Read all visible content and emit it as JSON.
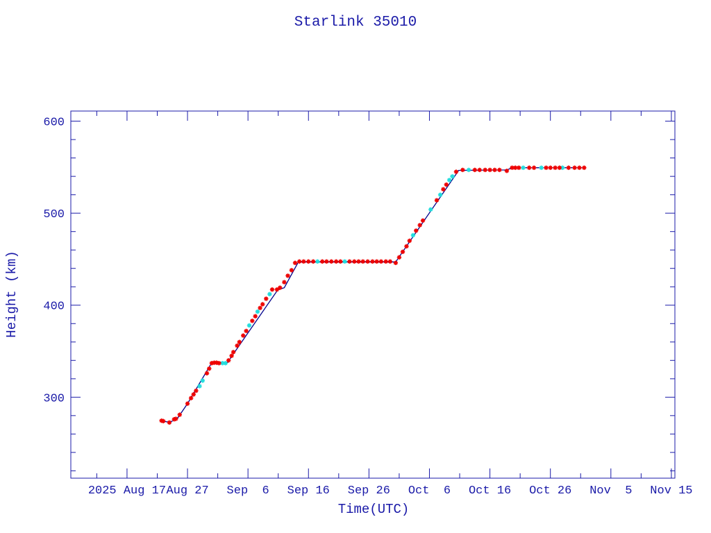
{
  "chart_data": {
    "type": "line",
    "title": "Starlink 35010",
    "xlabel": "Time(UTC)",
    "ylabel": "Height (km)",
    "xlim": [
      "2025-08-07T17:00",
      "2025-11-15T14:00"
    ],
    "ylim": [
      212,
      611
    ],
    "x_tick_dates": [
      "2025-08-17",
      "2025-08-27",
      "2025-09-06",
      "2025-09-16",
      "2025-09-26",
      "2025-10-06",
      "2025-10-16",
      "2025-10-26",
      "2025-11-05",
      "2025-11-15"
    ],
    "x_tick_labels": [
      "2025 Aug 17",
      "Aug 27",
      "Sep  6",
      "Sep 16",
      "Sep 26",
      "Oct  6",
      "Oct 16",
      "Oct 26",
      "Nov  5",
      "Nov 15"
    ],
    "y_ticks": [
      300,
      400,
      500,
      600
    ],
    "y_tick_labels": [
      "300",
      "400",
      "500",
      "600"
    ],
    "grid": false,
    "colors": {
      "axis": "#1a1aa8",
      "line": "#00008b",
      "marker_primary": "#ee0000",
      "marker_secondary": "#22dddd"
    },
    "series": [
      {
        "style": "line",
        "color": "#00008b",
        "points": [
          [
            "2025-08-22T17:00",
            274.7
          ],
          [
            "2025-08-24T00:00",
            272.5
          ],
          [
            "2025-08-25T08:00",
            277
          ],
          [
            "2025-08-27T00:00",
            293
          ],
          [
            "2025-08-31T00:00",
            337.4
          ],
          [
            "2025-09-02T14:00",
            337.5
          ],
          [
            "2025-09-10T22:00",
            416.6
          ],
          [
            "2025-09-12T00:00",
            419
          ],
          [
            "2025-09-14T08:00",
            447
          ],
          [
            "2025-09-30T10:00",
            447
          ],
          [
            "2025-10-10T20:00",
            546.5
          ],
          [
            "2025-10-18T20:00",
            547
          ],
          [
            "2025-10-19T16:00",
            549.4
          ],
          [
            "2025-10-31T14:00",
            549.4
          ]
        ]
      },
      {
        "style": "marker",
        "color": "#22dddd",
        "points": [
          [
            "2025-08-29T00:00",
            312
          ],
          [
            "2025-08-29T12:00",
            318
          ],
          [
            "2025-09-01T19:00",
            337
          ],
          [
            "2025-09-02T07:00",
            337
          ],
          [
            "2025-09-06T05:00",
            378
          ],
          [
            "2025-09-07T14:00",
            393
          ],
          [
            "2025-09-09T14:00",
            412
          ],
          [
            "2025-09-17T12:00",
            447.5
          ],
          [
            "2025-09-22T00:00",
            447.5
          ],
          [
            "2025-10-03T07:00",
            476
          ],
          [
            "2025-10-06T05:00",
            504
          ],
          [
            "2025-10-07T19:00",
            520
          ],
          [
            "2025-10-09T07:00",
            536
          ],
          [
            "2025-10-09T19:00",
            540
          ],
          [
            "2025-10-12T12:00",
            547
          ],
          [
            "2025-10-21T12:00",
            549.4
          ],
          [
            "2025-10-24T12:00",
            549.4
          ],
          [
            "2025-10-28T00:00",
            549.4
          ]
        ]
      },
      {
        "style": "marker",
        "color": "#ee0000",
        "points": [
          [
            "2025-08-22T17:00",
            274.5
          ],
          [
            "2025-08-23T00:00",
            274
          ],
          [
            "2025-08-24T00:00",
            272.5
          ],
          [
            "2025-08-24T19:00",
            276
          ],
          [
            "2025-08-25T02:00",
            276.5
          ],
          [
            "2025-08-25T17:00",
            281
          ],
          [
            "2025-08-27T00:00",
            293
          ],
          [
            "2025-08-27T14:00",
            299
          ],
          [
            "2025-08-28T00:00",
            303
          ],
          [
            "2025-08-28T10:00",
            307
          ],
          [
            "2025-08-30T05:00",
            326
          ],
          [
            "2025-08-30T14:00",
            331
          ],
          [
            "2025-08-31T00:00",
            337
          ],
          [
            "2025-08-31T10:00",
            337.5
          ],
          [
            "2025-08-31T19:00",
            337.5
          ],
          [
            "2025-09-01T05:00",
            337
          ],
          [
            "2025-09-02T19:00",
            340
          ],
          [
            "2025-09-03T07:00",
            345
          ],
          [
            "2025-09-03T14:00",
            349
          ],
          [
            "2025-09-04T05:00",
            356
          ],
          [
            "2025-09-04T14:00",
            360
          ],
          [
            "2025-09-05T05:00",
            367
          ],
          [
            "2025-09-05T17:00",
            372
          ],
          [
            "2025-09-06T17:00",
            383
          ],
          [
            "2025-09-07T05:00",
            388
          ],
          [
            "2025-09-08T00:00",
            397
          ],
          [
            "2025-09-08T10:00",
            401
          ],
          [
            "2025-09-09T00:00",
            407
          ],
          [
            "2025-09-10T00:00",
            417
          ],
          [
            "2025-09-10T19:00",
            417
          ],
          [
            "2025-09-11T07:00",
            419
          ],
          [
            "2025-09-12T00:00",
            425
          ],
          [
            "2025-09-12T14:00",
            432
          ],
          [
            "2025-09-13T05:00",
            438
          ],
          [
            "2025-09-13T19:00",
            446
          ],
          [
            "2025-09-14T12:00",
            447.5
          ],
          [
            "2025-09-15T05:00",
            447.5
          ],
          [
            "2025-09-16T00:00",
            447.5
          ],
          [
            "2025-09-16T19:00",
            447.5
          ],
          [
            "2025-09-18T07:00",
            447.5
          ],
          [
            "2025-09-19T00:00",
            447.5
          ],
          [
            "2025-09-19T19:00",
            447.5
          ],
          [
            "2025-09-20T14:00",
            447.5
          ],
          [
            "2025-09-21T07:00",
            447.5
          ],
          [
            "2025-09-22T19:00",
            447.5
          ],
          [
            "2025-09-23T14:00",
            447.5
          ],
          [
            "2025-09-24T07:00",
            447.5
          ],
          [
            "2025-09-25T00:00",
            447.5
          ],
          [
            "2025-09-25T19:00",
            447.5
          ],
          [
            "2025-09-26T14:00",
            447.5
          ],
          [
            "2025-09-27T07:00",
            447.5
          ],
          [
            "2025-09-28T00:00",
            447.5
          ],
          [
            "2025-09-28T19:00",
            447.5
          ],
          [
            "2025-09-29T12:00",
            447.5
          ],
          [
            "2025-09-30T10:00",
            446
          ],
          [
            "2025-10-01T00:00",
            452
          ],
          [
            "2025-10-01T14:00",
            458
          ],
          [
            "2025-10-02T05:00",
            464
          ],
          [
            "2025-10-02T17:00",
            470
          ],
          [
            "2025-10-03T19:00",
            481
          ],
          [
            "2025-10-04T10:00",
            487
          ],
          [
            "2025-10-04T22:00",
            492
          ],
          [
            "2025-10-07T05:00",
            514
          ],
          [
            "2025-10-08T07:00",
            526
          ],
          [
            "2025-10-08T19:00",
            531
          ],
          [
            "2025-10-10T10:00",
            545
          ],
          [
            "2025-10-11T12:00",
            547
          ],
          [
            "2025-10-13T12:00",
            547
          ],
          [
            "2025-10-14T07:00",
            547
          ],
          [
            "2025-10-15T05:00",
            547
          ],
          [
            "2025-10-16T00:00",
            547
          ],
          [
            "2025-10-16T19:00",
            547
          ],
          [
            "2025-10-17T14:00",
            547
          ],
          [
            "2025-10-18T19:00",
            546
          ],
          [
            "2025-10-19T16:00",
            549.4
          ],
          [
            "2025-10-20T05:00",
            549.4
          ],
          [
            "2025-10-20T19:00",
            549.4
          ],
          [
            "2025-10-22T12:00",
            549.4
          ],
          [
            "2025-10-23T07:00",
            549.4
          ],
          [
            "2025-10-25T07:00",
            549.4
          ],
          [
            "2025-10-26T00:00",
            549.4
          ],
          [
            "2025-10-26T19:00",
            549.4
          ],
          [
            "2025-10-27T12:00",
            549.4
          ],
          [
            "2025-10-29T00:00",
            549.4
          ],
          [
            "2025-10-30T00:00",
            549.4
          ],
          [
            "2025-10-30T19:00",
            549.4
          ],
          [
            "2025-10-31T14:00",
            549.4
          ]
        ]
      }
    ]
  }
}
